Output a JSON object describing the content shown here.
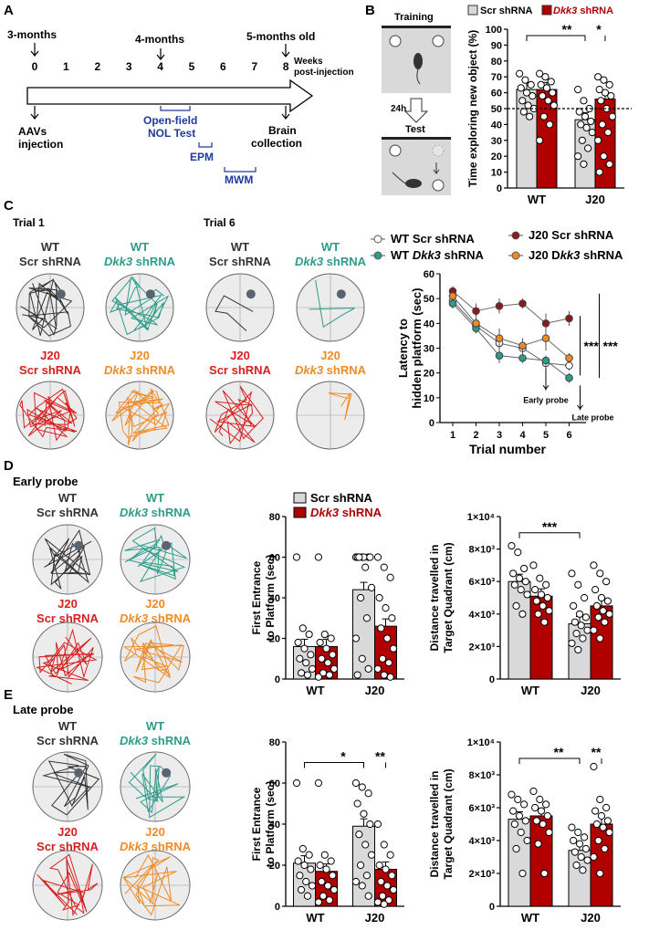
{
  "panels": {
    "A": "A",
    "B": "B",
    "C": "C",
    "D": "D",
    "E": "E"
  },
  "colors": {
    "scr": "#d9d9d9",
    "dkk3": "#b00000",
    "wt_scr": "#333333",
    "wt_dkk3": "#2e9c8a",
    "j20_scr": "#d62020",
    "j20_dkk3": "#f08a24",
    "blue_text": "#1f3a9e",
    "arena": "#ececec"
  },
  "timeline": {
    "labels_top": [
      "3-months",
      "4-months",
      "5-months old"
    ],
    "weeks": [
      "0",
      "1",
      "2",
      "3",
      "4",
      "5",
      "6",
      "7",
      "8"
    ],
    "weeks_label": [
      "Weeks",
      "post-injection"
    ],
    "aav": [
      "AAVs",
      "injection"
    ],
    "brain": [
      "Brain",
      "collection"
    ],
    "tests": [
      "Open-field",
      "NOL Test",
      "EPM",
      "MWM"
    ]
  },
  "schematic": {
    "training": "Training",
    "test": "Test",
    "delay": "24h"
  },
  "legend_top": {
    "scr": "Scr shRNA",
    "dkk3_italic": "Dkk3",
    "dkk3_rest": " shRNA"
  },
  "panelC": {
    "trial1": "Trial 1",
    "trial6": "Trial 6",
    "groups": [
      {
        "line1": "WT",
        "line2a": "Scr",
        "line2b": " shRNA",
        "italic": false
      },
      {
        "line1": "WT",
        "line2a": "Dkk3",
        "line2b": " shRNA",
        "italic": true
      },
      {
        "line1": "J20",
        "line2a": "Scr",
        "line2b": " shRNA",
        "italic": false
      },
      {
        "line1": "J20",
        "line2a": "Dkk3",
        "line2b": " shRNA",
        "italic": true
      }
    ],
    "legend": {
      "wt_scr": "WT Scr shRNA",
      "wt_dkk3_a": "WT ",
      "wt_dkk3_b": "Dkk3",
      "wt_dkk3_c": " shRNA",
      "j20_scr": "J20 Scr shRNA",
      "j20_dkk3_a": "J20 D",
      "j20_dkk3_b": "kk3",
      "j20_dkk3_c": " shRNA"
    },
    "early_probe": "Early probe",
    "late_probe": "Late probe",
    "sig": [
      "***",
      "***"
    ]
  },
  "panelD_title": "Early probe",
  "panelE_title": "Late probe",
  "chart_data": [
    {
      "id": "B",
      "type": "bar",
      "categories": [
        "WT",
        "J20"
      ],
      "series": [
        {
          "name": "Scr shRNA",
          "values": [
            62,
            43
          ],
          "points": [
            [
              72,
              68,
              65,
              63,
              60,
              58,
              55,
              52,
              50,
              48,
              45
            ],
            [
              62,
              55,
              50,
              48,
              45,
              42,
              40,
              38,
              35,
              30,
              25,
              20,
              15
            ]
          ]
        },
        {
          "name": "Dkk3 shRNA",
          "values": [
            62,
            56
          ],
          "points": [
            [
              72,
              70,
              67,
              65,
              63,
              60,
              58,
              55,
              52,
              45,
              40,
              30
            ],
            [
              70,
              68,
              65,
              62,
              60,
              58,
              55,
              50,
              45,
              40,
              35,
              30,
              20,
              15,
              10
            ]
          ]
        }
      ],
      "ylabel": "Time exploring new object (%)",
      "ylim": [
        0,
        100
      ],
      "yticks": [
        0,
        10,
        20,
        30,
        40,
        50,
        60,
        70,
        80,
        90,
        100
      ],
      "refline": 50,
      "sig": [
        "**",
        "*"
      ]
    },
    {
      "id": "C",
      "type": "line",
      "x": [
        1,
        2,
        3,
        4,
        5,
        6
      ],
      "xlabel": "Trial number",
      "ylabel": "Latency to hidden platform (sec)",
      "ylim": [
        0,
        60
      ],
      "yticks": [
        0,
        10,
        20,
        30,
        40,
        50,
        60
      ],
      "series": [
        {
          "name": "WT Scr shRNA",
          "values": [
            49,
            39,
            32,
            30,
            24,
            23
          ],
          "err": [
            2,
            2,
            3,
            2,
            2,
            2
          ]
        },
        {
          "name": "WT Dkk3 shRNA",
          "values": [
            48,
            38,
            27,
            26,
            25,
            18
          ],
          "err": [
            2,
            2,
            3,
            2,
            2,
            2
          ]
        },
        {
          "name": "J20 Scr shRNA",
          "values": [
            53,
            45,
            47,
            48,
            40,
            42
          ],
          "err": [
            2,
            3,
            3,
            2,
            4,
            3
          ]
        },
        {
          "name": "J20 Dkk3 shRNA",
          "values": [
            51,
            40,
            34,
            31,
            34,
            26
          ],
          "err": [
            2,
            2,
            4,
            3,
            5,
            2
          ]
        }
      ]
    },
    {
      "id": "D1",
      "type": "bar",
      "categories": [
        "WT",
        "J20"
      ],
      "series": [
        {
          "name": "Scr shRNA",
          "values": [
            16,
            44
          ],
          "points": [
            [
              60,
              25,
              22,
              18,
              15,
              12,
              10,
              8,
              5,
              3,
              2
            ],
            [
              60,
              60,
              60,
              60,
              60,
              60,
              60,
              55,
              45,
              40,
              30,
              20,
              10,
              5,
              2
            ]
          ]
        },
        {
          "name": "Dkk3 shRNA",
          "values": [
            16,
            26
          ],
          "points": [
            [
              60,
              22,
              20,
              18,
              15,
              12,
              10,
              8,
              5,
              3,
              2,
              1
            ],
            [
              60,
              55,
              50,
              40,
              35,
              30,
              25,
              20,
              15,
              10,
              8,
              5,
              2,
              1
            ]
          ]
        }
      ],
      "ylabel": "First Entrance to Platform (sec)",
      "ylim": [
        0,
        80
      ],
      "yticks": [
        0,
        20,
        40,
        60,
        80
      ],
      "legend": {
        "scr": "Scr shRNA",
        "dkk3_a": "Dkk3",
        "dkk3_b": " shRNA"
      }
    },
    {
      "id": "D2",
      "type": "bar",
      "categories": [
        "WT",
        "J20"
      ],
      "series": [
        {
          "name": "Scr shRNA",
          "values": [
            6000,
            3400
          ],
          "points": [
            [
              8200,
              7800,
              6800,
              6500,
              6200,
              6000,
              5800,
              5500,
              5200,
              4500,
              4000
            ],
            [
              6500,
              5800,
              5000,
              4500,
              4000,
              3800,
              3500,
              3300,
              3000,
              2800,
              2500,
              2200,
              1800
            ]
          ]
        },
        {
          "name": "Dkk3 shRNA",
          "values": [
            5100,
            4500
          ],
          "points": [
            [
              7000,
              6200,
              5800,
              5500,
              5200,
              5000,
              4800,
              4500,
              4200,
              4000,
              3500
            ],
            [
              7000,
              6500,
              6000,
              5500,
              5000,
              4800,
              4500,
              4200,
              4000,
              3800,
              3500,
              3000,
              2500
            ]
          ]
        }
      ],
      "ylabel": "Distance travelled in Target Quadrant (cm)",
      "ylim": [
        0,
        10000
      ],
      "yticks": [
        "0",
        "2×10³",
        "4×10³",
        "6×10³",
        "8×10³",
        "1×10⁴"
      ],
      "sig": [
        "***"
      ]
    },
    {
      "id": "E1",
      "type": "bar",
      "categories": [
        "WT",
        "J20"
      ],
      "series": [
        {
          "name": "Scr shRNA",
          "values": [
            21,
            39
          ],
          "points": [
            [
              60,
              28,
              25,
              22,
              20,
              18,
              15,
              12,
              10,
              8,
              5
            ],
            [
              60,
              58,
              55,
              50,
              45,
              40,
              35,
              30,
              25,
              20,
              15,
              12,
              10,
              5
            ]
          ]
        },
        {
          "name": "Dkk3 shRNA",
          "values": [
            17,
            18
          ],
          "points": [
            [
              60,
              25,
              22,
              20,
              18,
              15,
              12,
              10,
              8,
              5,
              3,
              2
            ],
            [
              40,
              30,
              25,
              20,
              18,
              15,
              12,
              10,
              8,
              5,
              3,
              2,
              1
            ]
          ]
        }
      ],
      "ylabel": "First Entrance to Platform (sec)",
      "ylim": [
        0,
        80
      ],
      "yticks": [
        0,
        20,
        40,
        60,
        80
      ],
      "sig": [
        "*",
        "**"
      ]
    },
    {
      "id": "E2",
      "type": "bar",
      "categories": [
        "WT",
        "J20"
      ],
      "series": [
        {
          "name": "Scr shRNA",
          "values": [
            5300,
            3400
          ],
          "points": [
            [
              6800,
              6500,
              6200,
              5800,
              5500,
              5200,
              5000,
              4500,
              4000,
              3500,
              2000
            ],
            [
              4800,
              4500,
              4200,
              4000,
              3800,
              3500,
              3300,
              3000,
              2800,
              2500,
              2200
            ]
          ]
        },
        {
          "name": "Dkk3 shRNA",
          "values": [
            5500,
            5000
          ],
          "points": [
            [
              7000,
              6500,
              6200,
              6000,
              5800,
              5500,
              5200,
              5000,
              4500,
              3800,
              2000
            ],
            [
              8500,
              6500,
              6000,
              5800,
              5500,
              5200,
              5000,
              4800,
              4500,
              4000,
              3500,
              3000,
              2000
            ]
          ]
        }
      ],
      "ylabel": "Distance travelled in Target Quadrant (cm)",
      "ylim": [
        0,
        10000
      ],
      "yticks": [
        "0",
        "2×10³",
        "4×10³",
        "6×10³",
        "8×10³",
        "1×10⁴"
      ],
      "sig": [
        "**",
        "**"
      ]
    }
  ]
}
